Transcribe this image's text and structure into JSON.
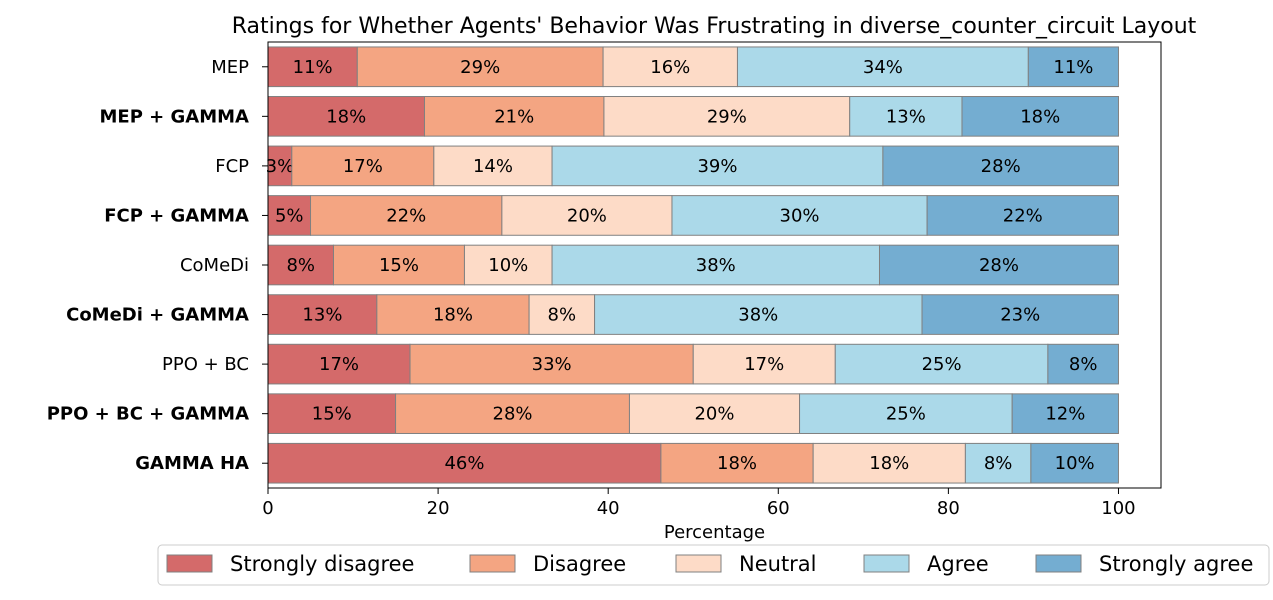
{
  "chart_data": {
    "type": "bar",
    "orientation": "horizontal",
    "stacked": true,
    "title": "Ratings for Whether Agents' Behavior Was Frustrating in diverse_counter_circuit Layout",
    "xlabel": "Percentage",
    "ylabel": "",
    "xlim": [
      0,
      105
    ],
    "xticks": [
      0,
      20,
      40,
      60,
      80,
      100
    ],
    "grid": false,
    "legend_position": "bottom",
    "categories": [
      {
        "label": "MEP",
        "bold": false
      },
      {
        "label": "MEP + GAMMA",
        "bold": true
      },
      {
        "label": "FCP",
        "bold": false
      },
      {
        "label": "FCP + GAMMA",
        "bold": true
      },
      {
        "label": "CoMeDi",
        "bold": false
      },
      {
        "label": "CoMeDi + GAMMA",
        "bold": true
      },
      {
        "label": "PPO + BC",
        "bold": false
      },
      {
        "label": "PPO + BC + GAMMA",
        "bold": true
      },
      {
        "label": "GAMMA HA",
        "bold": true
      }
    ],
    "series": [
      {
        "name": "Strongly disagree",
        "color": "#d46a6a",
        "values": [
          10.5,
          18.4,
          2.8,
          5.0,
          7.7,
          12.8,
          16.7,
          15.0,
          46.2
        ],
        "labels": [
          "11%",
          "18%",
          "3%",
          "5%",
          "8%",
          "13%",
          "17%",
          "15%",
          "46%"
        ]
      },
      {
        "name": "Disagree",
        "color": "#f4a582",
        "values": [
          28.9,
          21.1,
          16.7,
          22.5,
          15.4,
          17.9,
          33.3,
          27.5,
          17.9
        ],
        "labels": [
          "29%",
          "21%",
          "17%",
          "22%",
          "15%",
          "18%",
          "33%",
          "28%",
          "18%"
        ]
      },
      {
        "name": "Neutral",
        "color": "#fddbc7",
        "values": [
          15.8,
          28.9,
          13.9,
          20.0,
          10.3,
          7.7,
          16.7,
          20.0,
          17.9
        ],
        "labels": [
          "16%",
          "29%",
          "14%",
          "20%",
          "10%",
          "8%",
          "17%",
          "20%",
          "18%"
        ]
      },
      {
        "name": "Agree",
        "color": "#abd9e9",
        "values": [
          34.2,
          13.2,
          38.9,
          30.0,
          38.5,
          38.5,
          25.0,
          25.0,
          7.7
        ],
        "labels": [
          "34%",
          "13%",
          "39%",
          "30%",
          "38%",
          "38%",
          "25%",
          "25%",
          "8%"
        ]
      },
      {
        "name": "Strongly agree",
        "color": "#74add1",
        "values": [
          10.6,
          18.4,
          27.7,
          22.5,
          28.1,
          23.1,
          8.3,
          12.5,
          10.3
        ],
        "labels": [
          "11%",
          "18%",
          "28%",
          "22%",
          "28%",
          "23%",
          "8%",
          "12%",
          "10%"
        ]
      }
    ]
  }
}
